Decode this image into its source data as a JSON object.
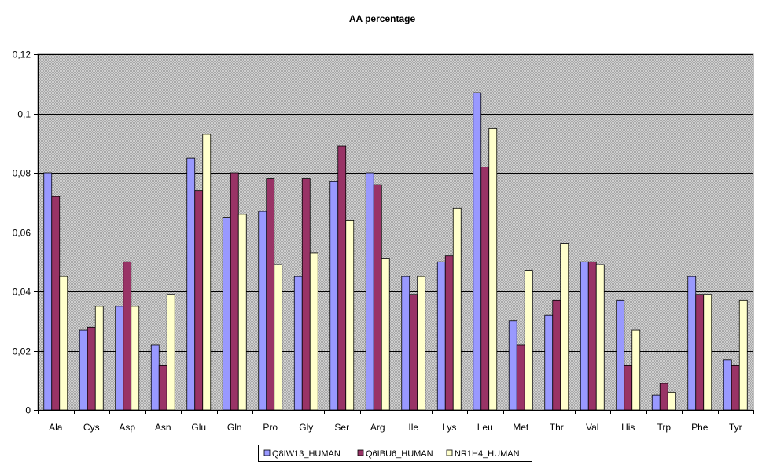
{
  "chart_data": {
    "type": "bar",
    "title": "AA percentage",
    "xlabel": "",
    "ylabel": "",
    "ylim": [
      0,
      0.12
    ],
    "yticks": [
      "0",
      "0,02",
      "0,04",
      "0,06",
      "0,08",
      "0,1",
      "0,12"
    ],
    "grid": true,
    "legend_position": "bottom",
    "categories": [
      "Ala",
      "Cys",
      "Asp",
      "Asn",
      "Glu",
      "Gln",
      "Pro",
      "Gly",
      "Ser",
      "Arg",
      "Ile",
      "Lys",
      "Leu",
      "Met",
      "Thr",
      "Val",
      "His",
      "Trp",
      "Phe",
      "Tyr"
    ],
    "series": [
      {
        "name": "Q8IW13_HUMAN",
        "color": "#9999ff",
        "values": [
          0.08,
          0.027,
          0.035,
          0.022,
          0.085,
          0.065,
          0.067,
          0.045,
          0.077,
          0.08,
          0.045,
          0.05,
          0.107,
          0.03,
          0.032,
          0.05,
          0.037,
          0.005,
          0.045,
          0.017
        ]
      },
      {
        "name": "Q6IBU6_HUMAN",
        "color": "#993366",
        "values": [
          0.072,
          0.028,
          0.05,
          0.015,
          0.074,
          0.08,
          0.078,
          0.078,
          0.089,
          0.076,
          0.039,
          0.052,
          0.082,
          0.022,
          0.037,
          0.05,
          0.015,
          0.009,
          0.039,
          0.015
        ]
      },
      {
        "name": "NR1H4_HUMAN",
        "color": "#ffffcc",
        "values": [
          0.045,
          0.035,
          0.035,
          0.039,
          0.093,
          0.066,
          0.049,
          0.053,
          0.064,
          0.051,
          0.045,
          0.068,
          0.095,
          0.047,
          0.056,
          0.049,
          0.027,
          0.006,
          0.039,
          0.037
        ]
      }
    ]
  }
}
